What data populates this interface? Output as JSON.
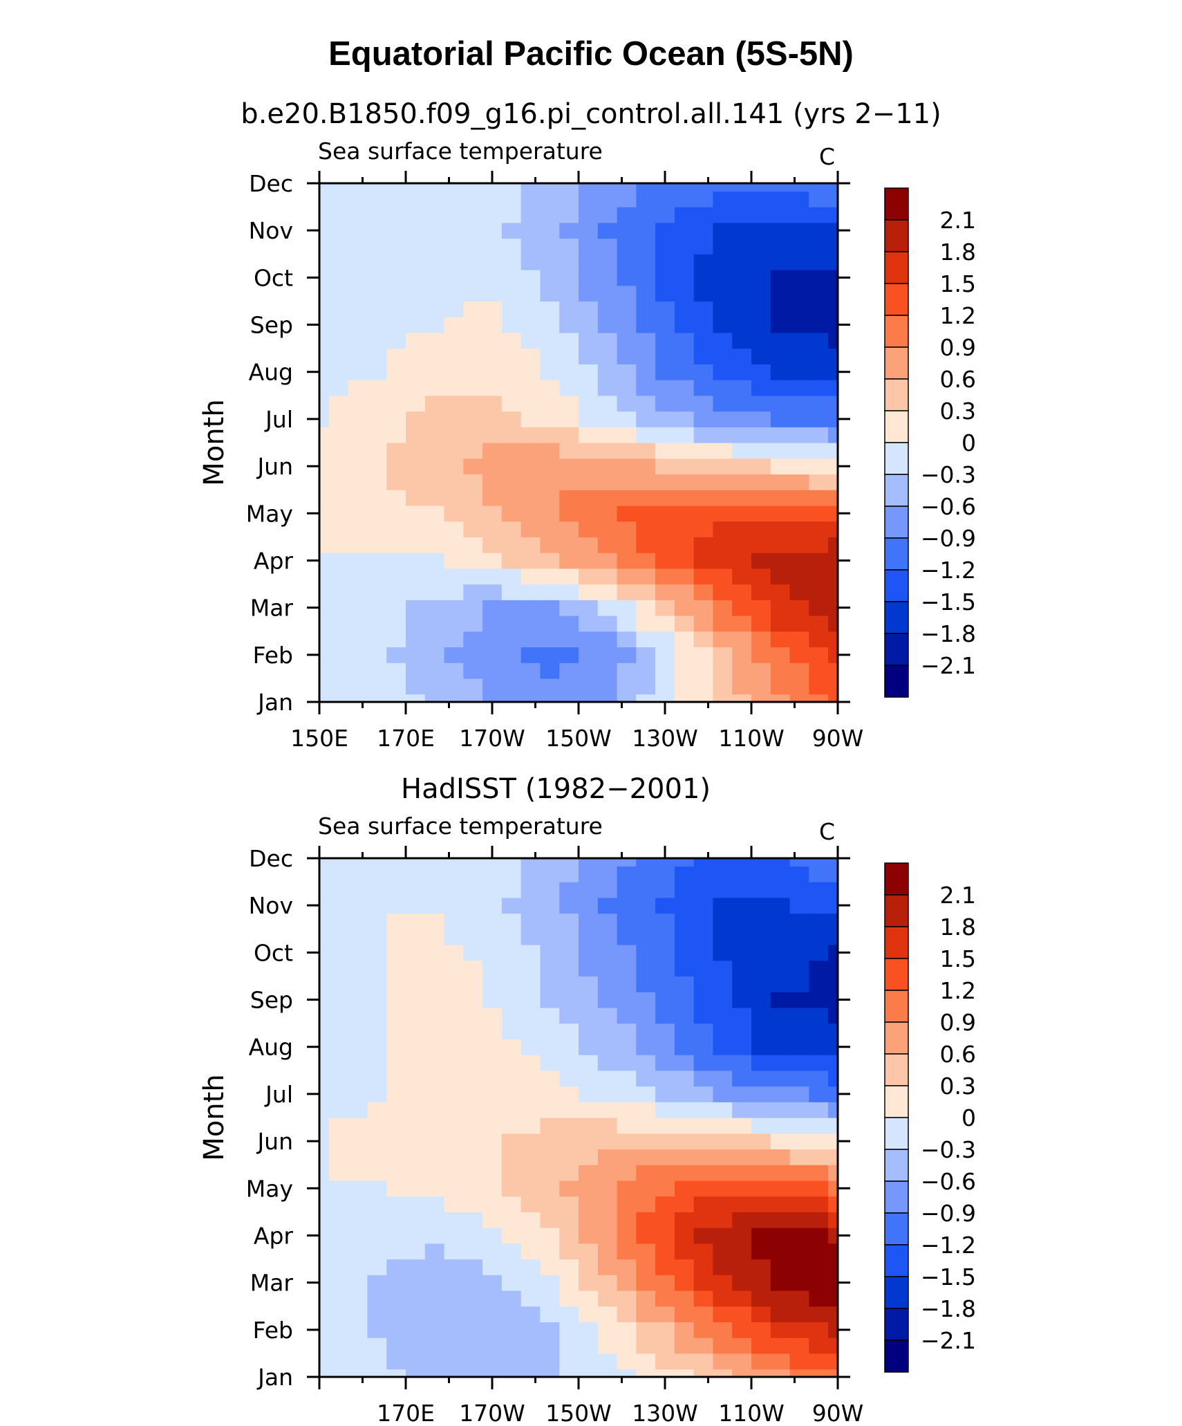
{
  "title": "Equatorial Pacific Ocean (5S-5N)",
  "colors": [
    "#00007f",
    "#001aa5",
    "#0038d0",
    "#1e56f5",
    "#4274fa",
    "#7698fc",
    "#a5bdfd",
    "#d3e6fd",
    "#fee7d5",
    "#fcc7a9",
    "#fca27b",
    "#fb7b4a",
    "#f95122",
    "#e03410",
    "#b8200c",
    "#8c0202"
  ],
  "chart_data": [
    {
      "type": "heatmap",
      "title": "b.e20.B1850.f09_g16.pi_control.all.141 (yrs 2−11)",
      "left_label": "Sea surface temperature",
      "units": "C",
      "ylabel": "Month",
      "xlabel": "",
      "x": [
        "150E",
        "170E",
        "170W",
        "150W",
        "130W",
        "110W",
        "90W"
      ],
      "x_degE": [
        150,
        170,
        190,
        210,
        230,
        250,
        270
      ],
      "xlim": [
        150,
        270
      ],
      "y": [
        "Jan",
        "Feb",
        "Mar",
        "Apr",
        "May",
        "Jun",
        "Jul",
        "Aug",
        "Sep",
        "Oct",
        "Nov",
        "Dec"
      ],
      "contour_levels": [
        -2.1,
        -1.8,
        -1.5,
        -1.2,
        -0.9,
        -0.6,
        -0.3,
        0,
        0.3,
        0.6,
        0.9,
        1.2,
        1.5,
        1.8,
        2.1
      ],
      "colorbar_labels": [
        "2.1",
        "1.8",
        "1.5",
        "1.2",
        "0.9",
        "0.6",
        "0.3",
        "0",
        "−0.3",
        "−0.6",
        "−0.9",
        "−1.2",
        "−1.5",
        "−1.8",
        "−2.1"
      ],
      "values": [
        [
          -0.2,
          -0.2,
          -0.3,
          -0.6,
          -0.8,
          -0.6,
          -0.1,
          0.4,
          0.9,
          1.3
        ],
        [
          -0.2,
          -0.2,
          -0.5,
          -0.8,
          -1.0,
          -0.8,
          -0.2,
          0.5,
          1.1,
          1.6
        ],
        [
          -0.1,
          -0.2,
          -0.4,
          -0.6,
          -0.6,
          -0.2,
          0.4,
          1.1,
          1.7,
          2.0
        ],
        [
          0.0,
          0.0,
          0.0,
          0.2,
          0.5,
          0.9,
          1.3,
          1.7,
          1.9,
          2.1
        ],
        [
          0.2,
          0.2,
          0.3,
          0.6,
          0.9,
          1.2,
          1.4,
          1.5,
          1.4,
          1.3
        ],
        [
          0.2,
          0.3,
          0.5,
          0.7,
          0.8,
          0.7,
          0.6,
          0.4,
          0.3,
          0.1
        ],
        [
          0.0,
          0.2,
          0.4,
          0.4,
          0.2,
          -0.1,
          -0.5,
          -0.8,
          -0.9,
          -1.0
        ],
        [
          -0.1,
          0.0,
          0.2,
          0.2,
          0.0,
          -0.4,
          -0.9,
          -1.2,
          -1.5,
          -1.6
        ],
        [
          -0.1,
          -0.1,
          0.0,
          0.1,
          -0.2,
          -0.6,
          -1.1,
          -1.6,
          -1.8,
          -1.9
        ],
        [
          -0.1,
          -0.1,
          -0.1,
          -0.1,
          -0.4,
          -0.8,
          -1.3,
          -1.7,
          -1.8,
          -1.8
        ],
        [
          -0.1,
          0.0,
          0.0,
          -0.2,
          -0.5,
          -0.9,
          -1.2,
          -1.5,
          -1.5,
          -1.5
        ],
        [
          0.0,
          0.0,
          0.0,
          -0.2,
          -0.4,
          -0.7,
          -1.0,
          -1.1,
          -1.1,
          -1.0
        ]
      ]
    },
    {
      "type": "heatmap",
      "title": "HadISST (1982−2001)",
      "left_label": "Sea surface temperature",
      "units": "C",
      "ylabel": "Month",
      "xlabel": "",
      "x": [
        "170E",
        "170W",
        "150W",
        "130W",
        "110W",
        "90W"
      ],
      "x_degE": [
        170,
        190,
        210,
        230,
        250,
        270
      ],
      "xlim": [
        150,
        270
      ],
      "y": [
        "Jan",
        "Feb",
        "Mar",
        "Apr",
        "May",
        "Jun",
        "Jul",
        "Aug",
        "Sep",
        "Oct",
        "Nov",
        "Dec"
      ],
      "contour_levels": [
        -2.1,
        -1.8,
        -1.5,
        -1.2,
        -0.9,
        -0.6,
        -0.3,
        0,
        0.3,
        0.6,
        0.9,
        1.2,
        1.5,
        1.8,
        2.1
      ],
      "colorbar_labels": [
        "2.1",
        "1.8",
        "1.5",
        "1.2",
        "0.9",
        "0.6",
        "0.3",
        "0",
        "−0.3",
        "−0.6",
        "−0.9",
        "−1.2",
        "−1.5",
        "−1.8",
        "−2.1"
      ],
      "values": [
        [
          -0.1,
          -0.2,
          -0.4,
          -0.4,
          -0.3,
          -0.1,
          0.2,
          0.5,
          0.9,
          1.2
        ],
        [
          -0.1,
          -0.3,
          -0.5,
          -0.5,
          -0.3,
          0.1,
          0.6,
          1.1,
          1.6,
          1.9
        ],
        [
          -0.1,
          -0.3,
          -0.5,
          -0.4,
          -0.1,
          0.5,
          1.2,
          1.8,
          2.2,
          2.3
        ],
        [
          -0.1,
          -0.2,
          -0.2,
          -0.1,
          0.3,
          0.9,
          1.5,
          2.0,
          2.2,
          2.1
        ],
        [
          0.0,
          0.0,
          0.1,
          0.2,
          0.5,
          0.9,
          1.2,
          1.4,
          1.4,
          1.2
        ],
        [
          0.0,
          0.1,
          0.2,
          0.3,
          0.4,
          0.5,
          0.5,
          0.4,
          0.3,
          0.1
        ],
        [
          -0.1,
          0.0,
          0.1,
          0.2,
          0.1,
          -0.1,
          -0.3,
          -0.6,
          -0.8,
          -1.0
        ],
        [
          -0.1,
          0.0,
          0.2,
          0.1,
          -0.1,
          -0.4,
          -0.8,
          -1.3,
          -1.6,
          -1.7
        ],
        [
          -0.1,
          0.0,
          0.2,
          0.0,
          -0.3,
          -0.6,
          -1.0,
          -1.4,
          -1.8,
          -1.9
        ],
        [
          0.0,
          0.0,
          0.1,
          -0.1,
          -0.4,
          -0.8,
          -1.1,
          -1.5,
          -1.7,
          -1.8
        ],
        [
          0.0,
          0.0,
          0.0,
          -0.2,
          -0.5,
          -0.9,
          -1.2,
          -1.5,
          -1.5,
          -1.4
        ],
        [
          0.0,
          0.0,
          0.0,
          -0.2,
          -0.4,
          -0.8,
          -1.1,
          -1.3,
          -1.2,
          -1.0
        ]
      ]
    }
  ]
}
